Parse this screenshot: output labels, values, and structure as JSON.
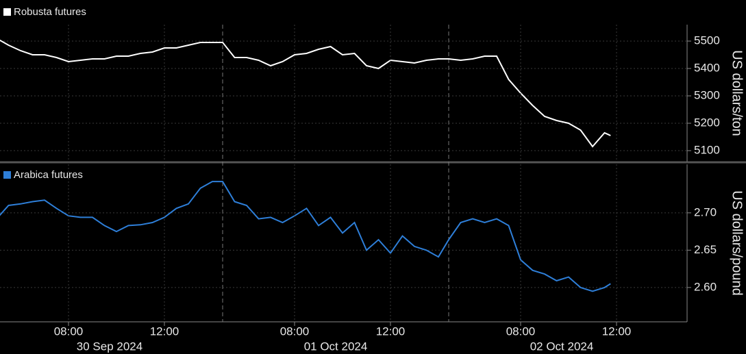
{
  "chart_data": [
    {
      "type": "line",
      "y_label": "US dollars/ton",
      "x": [
        "2024-09-30 05:00",
        "2024-09-30 05:30",
        "2024-09-30 06:00",
        "2024-09-30 06:30",
        "2024-09-30 07:00",
        "2024-09-30 07:30",
        "2024-09-30 08:00",
        "2024-09-30 08:30",
        "2024-09-30 09:00",
        "2024-09-30 09:30",
        "2024-09-30 10:00",
        "2024-09-30 10:30",
        "2024-09-30 11:00",
        "2024-09-30 11:30",
        "2024-09-30 12:00",
        "2024-09-30 12:30",
        "2024-09-30 13:00",
        "2024-09-30 13:30",
        "2024-09-30 14:00",
        "2024-10-01 05:00",
        "2024-10-01 05:30",
        "2024-10-01 06:00",
        "2024-10-01 06:30",
        "2024-10-01 07:00",
        "2024-10-01 07:30",
        "2024-10-01 08:00",
        "2024-10-01 08:30",
        "2024-10-01 09:00",
        "2024-10-01 09:30",
        "2024-10-01 10:00",
        "2024-10-01 10:30",
        "2024-10-01 11:00",
        "2024-10-01 11:30",
        "2024-10-01 12:00",
        "2024-10-01 12:30",
        "2024-10-01 13:00",
        "2024-10-01 13:30",
        "2024-10-01 14:00",
        "2024-10-02 05:00",
        "2024-10-02 05:30",
        "2024-10-02 06:00",
        "2024-10-02 06:30",
        "2024-10-02 07:00",
        "2024-10-02 07:30",
        "2024-10-02 08:00",
        "2024-10-02 08:30",
        "2024-10-02 09:00",
        "2024-10-02 09:30",
        "2024-10-02 10:00",
        "2024-10-02 10:30",
        "2024-10-02 11:00",
        "2024-10-02 11:30",
        "2024-10-02 11:45"
      ],
      "series": [
        {
          "name": "Robusta futures",
          "color": "#ffffff",
          "values": [
            5510,
            5485,
            5465,
            5450,
            5450,
            5440,
            5425,
            5430,
            5435,
            5435,
            5445,
            5445,
            5455,
            5460,
            5475,
            5475,
            5485,
            5495,
            5495,
            5495,
            5440,
            5440,
            5430,
            5410,
            5425,
            5450,
            5455,
            5470,
            5480,
            5450,
            5455,
            5410,
            5400,
            5430,
            5425,
            5420,
            5430,
            5435,
            5435,
            5430,
            5435,
            5445,
            5445,
            5360,
            5310,
            5265,
            5225,
            5210,
            5200,
            5175,
            5115,
            5165,
            5155
          ]
        }
      ],
      "xlim": [
        "2024-09-30 05:00",
        "2024-10-02 14:30"
      ],
      "ylim": [
        5060,
        5560
      ],
      "yticks": [
        5100,
        5200,
        5300,
        5400,
        5500
      ],
      "grid": true
    },
    {
      "type": "line",
      "y_label": "US dollars/pound",
      "x": [
        "2024-09-30 05:00",
        "2024-09-30 05:30",
        "2024-09-30 06:00",
        "2024-09-30 06:30",
        "2024-09-30 07:00",
        "2024-09-30 07:30",
        "2024-09-30 08:00",
        "2024-09-30 08:30",
        "2024-09-30 09:00",
        "2024-09-30 09:30",
        "2024-09-30 10:00",
        "2024-09-30 10:30",
        "2024-09-30 11:00",
        "2024-09-30 11:30",
        "2024-09-30 12:00",
        "2024-09-30 12:30",
        "2024-09-30 13:00",
        "2024-09-30 13:30",
        "2024-09-30 14:00",
        "2024-10-01 05:00",
        "2024-10-01 05:30",
        "2024-10-01 06:00",
        "2024-10-01 06:30",
        "2024-10-01 07:00",
        "2024-10-01 07:30",
        "2024-10-01 08:00",
        "2024-10-01 08:30",
        "2024-10-01 09:00",
        "2024-10-01 09:30",
        "2024-10-01 10:00",
        "2024-10-01 10:30",
        "2024-10-01 11:00",
        "2024-10-01 11:30",
        "2024-10-01 12:00",
        "2024-10-01 12:30",
        "2024-10-01 13:00",
        "2024-10-01 13:30",
        "2024-10-01 14:00",
        "2024-10-02 05:00",
        "2024-10-02 05:30",
        "2024-10-02 06:00",
        "2024-10-02 06:30",
        "2024-10-02 07:00",
        "2024-10-02 07:30",
        "2024-10-02 08:00",
        "2024-10-02 08:30",
        "2024-10-02 09:00",
        "2024-10-02 09:30",
        "2024-10-02 10:00",
        "2024-10-02 10:30",
        "2024-10-02 11:00",
        "2024-10-02 11:30",
        "2024-10-02 11:45"
      ],
      "series": [
        {
          "name": "Arabica futures",
          "color": "#2e7fd9",
          "values": [
            2.692,
            2.71,
            2.712,
            2.715,
            2.717,
            2.706,
            2.696,
            2.694,
            2.694,
            2.683,
            2.675,
            2.683,
            2.684,
            2.687,
            2.694,
            2.706,
            2.712,
            2.733,
            2.742,
            2.742,
            2.715,
            2.71,
            2.692,
            2.694,
            2.687,
            2.696,
            2.706,
            2.683,
            2.694,
            2.673,
            2.687,
            2.65,
            2.664,
            2.646,
            2.669,
            2.655,
            2.65,
            2.641,
            2.664,
            2.687,
            2.692,
            2.687,
            2.692,
            2.683,
            2.637,
            2.623,
            2.618,
            2.609,
            2.614,
            2.6,
            2.595,
            2.6,
            2.605
          ]
        }
      ],
      "xlim": [
        "2024-09-30 05:00",
        "2024-10-02 14:30"
      ],
      "ylim": [
        2.554,
        2.765
      ],
      "yticks": [
        {
          "value": 2.6,
          "label": "2.60"
        },
        {
          "value": 2.65,
          "label": "2.65"
        },
        {
          "value": 2.7,
          "label": "2.70"
        }
      ],
      "xticks": [
        {
          "value": "2024-09-30 08:00",
          "label": "08:00"
        },
        {
          "value": "2024-09-30 12:00",
          "label": "12:00"
        },
        {
          "value": "2024-10-01 08:00",
          "label": "08:00"
        },
        {
          "value": "2024-10-01 12:00",
          "label": "12:00"
        },
        {
          "value": "2024-10-02 08:00",
          "label": "08:00"
        },
        {
          "value": "2024-10-02 12:00",
          "label": "12:00"
        }
      ],
      "dates": [
        "30 Sep 2024",
        "01 Oct 2024",
        "02 Oct 2024"
      ],
      "grid": true
    }
  ]
}
